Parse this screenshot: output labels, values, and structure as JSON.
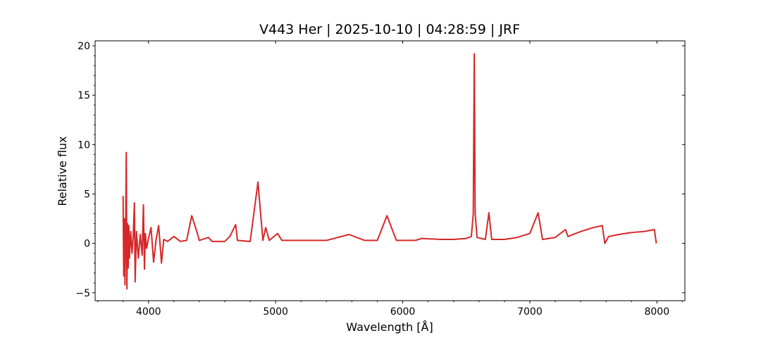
{
  "chart_data": {
    "type": "line",
    "title": "V443 Her | 2025-10-10 | 04:28:59 | JRF",
    "xlabel": "Wavelength [Å]",
    "ylabel": "Relative flux",
    "xlim": [
      3580,
      8220
    ],
    "ylim": [
      -5.8,
      20.5
    ],
    "xticks": [
      4000,
      5000,
      6000,
      7000,
      8000
    ],
    "yticks": [
      -5,
      0,
      5,
      10,
      15,
      20
    ],
    "grid": false,
    "legend": "none",
    "series": [
      {
        "color": "#d62728",
        "x": [
          3800,
          3805,
          3810,
          3815,
          3820,
          3825,
          3830,
          3835,
          3840,
          3845,
          3850,
          3860,
          3870,
          3880,
          3889,
          3895,
          3905,
          3920,
          3935,
          3950,
          3960,
          3968,
          3975,
          3985,
          4000,
          4020,
          4040,
          4060,
          4080,
          4102,
          4120,
          4150,
          4200,
          4250,
          4300,
          4340,
          4380,
          4400,
          4471,
          4500,
          4600,
          4640,
          4686,
          4700,
          4800,
          4861,
          4900,
          4922,
          4950,
          5015,
          5050,
          5200,
          5400,
          5577,
          5700,
          5800,
          5876,
          5950,
          6100,
          6150,
          6300,
          6400,
          6500,
          6540,
          6555,
          6563,
          6570,
          6585,
          6650,
          6678,
          6700,
          6800,
          6900,
          7000,
          7065,
          7100,
          7200,
          7280,
          7300,
          7400,
          7500,
          7570,
          7590,
          7620,
          7700,
          7800,
          7900,
          7980,
          7995
        ],
        "y": [
          4.8,
          -3.3,
          2.5,
          -4.2,
          1.5,
          9.2,
          -4.6,
          2.0,
          -2.5,
          1.8,
          -1.5,
          1.2,
          -1.0,
          0.8,
          4.1,
          -3.9,
          1.2,
          -1.5,
          0.9,
          -1.2,
          3.9,
          -2.6,
          1.0,
          -0.5,
          0.5,
          1.6,
          -1.9,
          0.4,
          1.8,
          -2.0,
          0.4,
          0.2,
          0.7,
          0.2,
          0.3,
          2.8,
          1.2,
          0.3,
          0.6,
          0.2,
          0.2,
          0.7,
          1.9,
          0.3,
          0.2,
          6.2,
          0.3,
          1.6,
          0.3,
          1.0,
          0.3,
          0.3,
          0.3,
          0.9,
          0.3,
          0.3,
          2.8,
          0.3,
          0.3,
          0.5,
          0.4,
          0.4,
          0.5,
          0.7,
          3.0,
          19.2,
          3.0,
          0.6,
          0.4,
          3.1,
          0.4,
          0.4,
          0.6,
          1.0,
          3.1,
          0.4,
          0.6,
          1.4,
          0.7,
          1.2,
          1.6,
          1.8,
          0.0,
          0.7,
          0.9,
          1.1,
          1.2,
          1.4,
          0.0
        ]
      }
    ]
  }
}
